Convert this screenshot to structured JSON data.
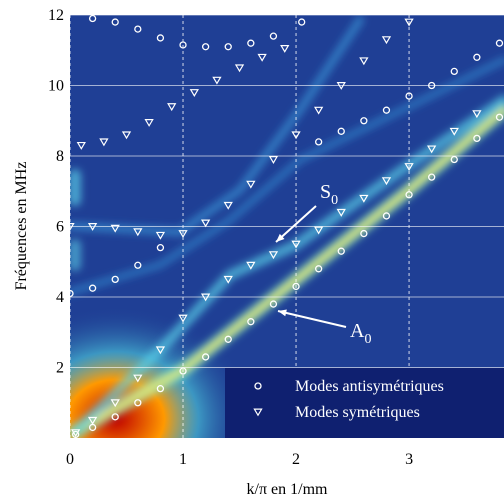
{
  "chart_data": {
    "type": "scatter",
    "xlabel": "k/π en 1/mm",
    "ylabel": "Fréquences en MHz",
    "xlim": [
      0,
      3.84
    ],
    "ylim": [
      0,
      12
    ],
    "xticks": [
      0,
      1,
      2,
      3
    ],
    "yticks": [
      2,
      4,
      6,
      8,
      10,
      12
    ],
    "grid": true,
    "legend": "lower right",
    "series": [
      {
        "name": "Modes antisymétriques",
        "marker": "circle",
        "color": "#ffffff",
        "x": [
          0.05,
          0.2,
          0.4,
          0.6,
          0.8,
          1.0,
          1.2,
          1.4,
          1.6,
          1.8,
          2.0,
          2.2,
          2.4,
          2.6,
          2.8,
          3.0,
          3.2,
          3.4,
          3.6,
          3.8,
          0.0,
          0.2,
          0.4,
          0.6,
          0.8,
          2.2,
          2.4,
          2.6,
          2.8,
          3.0,
          3.2,
          3.4,
          3.6,
          3.8,
          0.2,
          0.4,
          0.6,
          0.8,
          1.0,
          1.2,
          1.4,
          1.6,
          1.8,
          2.05
        ],
        "values": [
          0.1,
          0.3,
          0.6,
          1.0,
          1.4,
          1.9,
          2.3,
          2.8,
          3.3,
          3.8,
          4.3,
          4.8,
          5.3,
          5.8,
          6.3,
          6.9,
          7.4,
          7.9,
          8.5,
          9.1,
          4.1,
          4.25,
          4.5,
          4.9,
          5.4,
          8.4,
          8.7,
          9.0,
          9.3,
          9.7,
          10.0,
          10.4,
          10.8,
          11.2,
          11.9,
          11.8,
          11.6,
          11.35,
          11.15,
          11.1,
          11.1,
          11.2,
          11.4,
          11.8
        ]
      },
      {
        "name": "Modes symétriques",
        "marker": "triangle-down",
        "color": "#ffffff",
        "x": [
          0.05,
          0.2,
          0.4,
          0.6,
          0.8,
          1.0,
          1.2,
          1.4,
          1.6,
          1.8,
          2.0,
          2.2,
          2.4,
          2.6,
          2.8,
          3.0,
          3.2,
          3.4,
          3.6,
          0.0,
          0.2,
          0.4,
          0.6,
          0.8,
          1.0,
          1.2,
          1.4,
          1.6,
          1.8,
          2.0,
          2.2,
          2.4,
          2.6,
          2.8,
          3.0,
          0.1,
          0.3,
          0.5,
          0.7,
          0.9,
          1.1,
          1.3,
          1.5,
          1.7,
          1.9
        ],
        "values": [
          0.15,
          0.5,
          1.0,
          1.7,
          2.5,
          3.4,
          4.0,
          4.5,
          4.9,
          5.2,
          5.5,
          5.9,
          6.4,
          6.8,
          7.3,
          7.7,
          8.2,
          8.7,
          9.2,
          6.0,
          6.0,
          5.95,
          5.85,
          5.75,
          5.8,
          6.1,
          6.6,
          7.2,
          7.9,
          8.6,
          9.3,
          10.0,
          10.7,
          11.3,
          11.8,
          8.3,
          8.4,
          8.6,
          8.95,
          9.4,
          9.8,
          10.15,
          10.5,
          10.8,
          11.05
        ]
      }
    ],
    "annotations": [
      {
        "text": "S",
        "sub": "0"
      },
      {
        "text": "A",
        "sub": "0"
      }
    ]
  }
}
